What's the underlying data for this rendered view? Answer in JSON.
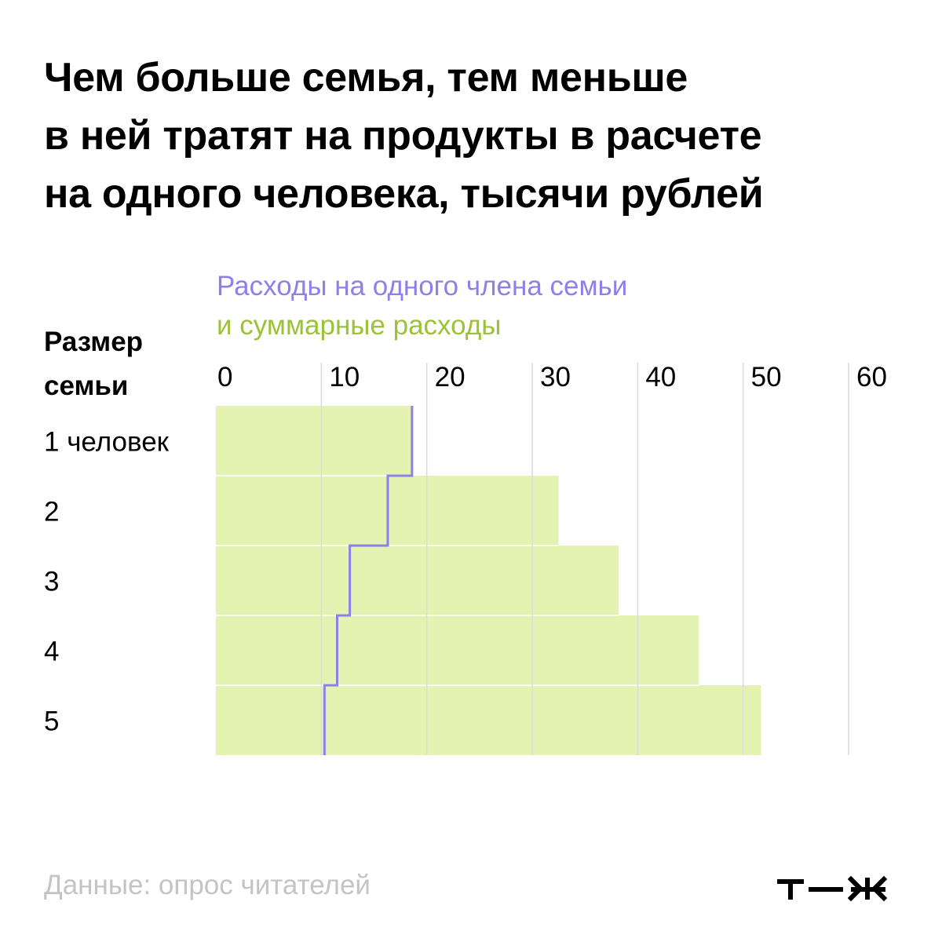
{
  "title_lines": [
    "Чем больше семья, тем меньше",
    "в ней тратят на продукты в расчете",
    "на одного человека, тысячи рублей"
  ],
  "legend": {
    "per_member": "Расходы на одного члена семьи",
    "total": "и суммарные расходы"
  },
  "y_title_lines": [
    "Размер",
    "семьи"
  ],
  "source": "Данные: опрос читателей",
  "logo": "т—ж",
  "colors": {
    "bar": "#e4f3b2",
    "line": "#8f7fe8",
    "legend_total": "#9cc23a",
    "grid": "#dcdcdc",
    "source": "#c4c4c4"
  },
  "chart_data": {
    "type": "bar",
    "orientation": "horizontal",
    "categories": [
      "1 человек",
      "2",
      "3",
      "4",
      "5"
    ],
    "xlim": [
      0,
      60
    ],
    "xticks": [
      0,
      10,
      20,
      30,
      40,
      50,
      60
    ],
    "grid": true,
    "series": [
      {
        "name": "и суммарные расходы",
        "kind": "bar",
        "values": [
          18.6,
          32.5,
          38.2,
          45.8,
          51.7
        ]
      },
      {
        "name": "Расходы на одного члена семьи",
        "kind": "step-line",
        "values": [
          18.6,
          16.3,
          12.7,
          11.5,
          10.3
        ]
      }
    ]
  }
}
